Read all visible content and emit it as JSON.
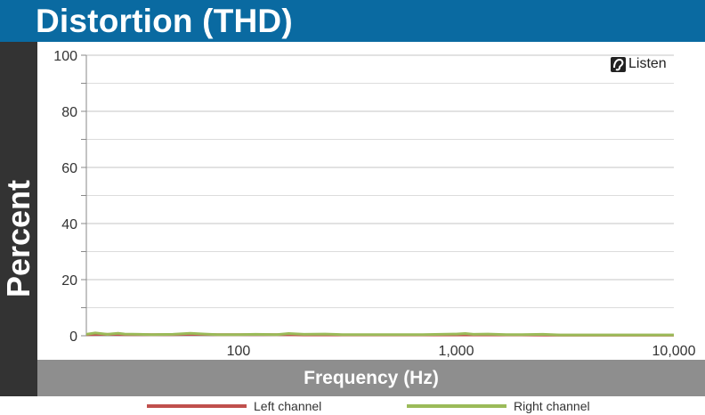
{
  "header": {
    "title": "Distortion (THD)"
  },
  "logo": {
    "label": "Listen"
  },
  "chart_data": {
    "type": "line",
    "title": "Distortion (THD)",
    "xlabel": "Frequency (Hz)",
    "ylabel": "Percent",
    "x_scale": "log",
    "xlim": [
      20,
      10000
    ],
    "ylim": [
      0,
      100
    ],
    "y_ticks": [
      0,
      20,
      40,
      60,
      80,
      100
    ],
    "x_ticks": [
      100,
      1000,
      10000
    ],
    "x_tick_labels": [
      "100",
      "1,000",
      "10,000"
    ],
    "grid": true,
    "legend_position": "bottom",
    "series": [
      {
        "name": "Left channel",
        "color": "#c0504d",
        "x": [
          20,
          25,
          30,
          40,
          50,
          60,
          80,
          100,
          150,
          200,
          300,
          500,
          800,
          1000,
          1200,
          1500,
          2000,
          3000,
          5000,
          8000,
          10000
        ],
        "y": [
          0.4,
          0.5,
          0.4,
          0.4,
          0.4,
          0.5,
          0.4,
          0.4,
          0.4,
          0.3,
          0.3,
          0.3,
          0.3,
          0.3,
          0.3,
          0.3,
          0.3,
          0.2,
          0.2,
          0.2,
          0.2
        ]
      },
      {
        "name": "Right channel",
        "color": "#9bbb59",
        "x": [
          20,
          22,
          25,
          28,
          30,
          35,
          40,
          50,
          60,
          70,
          80,
          100,
          120,
          150,
          170,
          200,
          250,
          300,
          400,
          500,
          700,
          1000,
          1100,
          1200,
          1400,
          1700,
          2000,
          2500,
          3000,
          4000,
          5000,
          7000,
          10000
        ],
        "y": [
          0.5,
          1.0,
          0.5,
          0.9,
          0.6,
          0.5,
          0.4,
          0.5,
          0.9,
          0.6,
          0.4,
          0.4,
          0.5,
          0.4,
          0.8,
          0.5,
          0.6,
          0.4,
          0.4,
          0.4,
          0.4,
          0.6,
          0.8,
          0.5,
          0.6,
          0.4,
          0.4,
          0.5,
          0.3,
          0.3,
          0.3,
          0.3,
          0.3
        ]
      }
    ]
  }
}
